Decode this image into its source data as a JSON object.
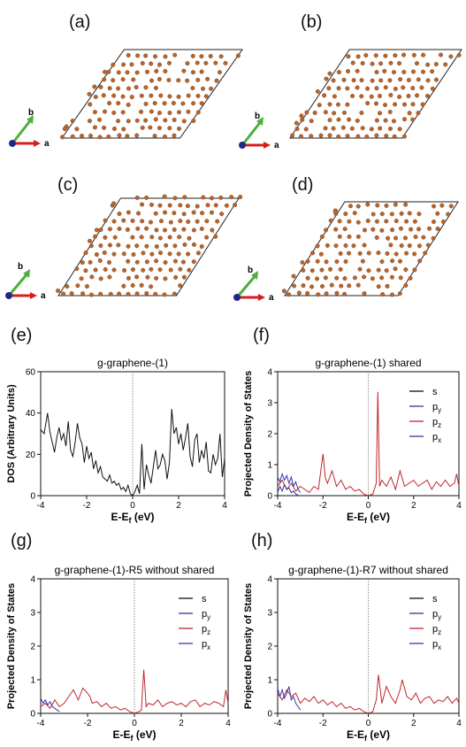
{
  "panels": {
    "a": "(a)",
    "b": "(b)",
    "c": "(c)",
    "d": "(d)",
    "e": "(e)",
    "f": "(f)",
    "g": "(g)",
    "h": "(h)"
  },
  "lattice_axes": {
    "a": "a",
    "b": "b"
  },
  "colors": {
    "atom": "#b5652e",
    "bond": "#c9c9c9",
    "cell": "#222222",
    "axis_a": "#d2201f",
    "axis_b": "#4caf3a",
    "axis_c": "#1d2a8a",
    "s": "#111111",
    "py": "#333399",
    "pz": "#c0262c",
    "px": "#3338a8"
  },
  "chart_data": [
    {
      "id": "e",
      "type": "line",
      "title": "g-graphene-(1)",
      "xlabel": "E-E",
      "xlabel_sub": "f",
      "xlabel_unit": " (eV)",
      "ylabel": "DOS (Arbitrary Units)",
      "xlim": [
        -4,
        4
      ],
      "ylim": [
        0,
        60
      ],
      "xticks": [
        -4,
        -2,
        0,
        2,
        4
      ],
      "yticks": [
        0,
        20,
        40,
        60
      ],
      "series": [
        {
          "key": "total",
          "color": "#111111",
          "x": [
            -4,
            -3.85,
            -3.7,
            -3.6,
            -3.5,
            -3.4,
            -3.3,
            -3.2,
            -3.1,
            -3.0,
            -2.9,
            -2.8,
            -2.7,
            -2.6,
            -2.5,
            -2.4,
            -2.3,
            -2.2,
            -2.1,
            -2.0,
            -1.9,
            -1.8,
            -1.7,
            -1.6,
            -1.5,
            -1.4,
            -1.3,
            -1.2,
            -1.1,
            -1.0,
            -0.9,
            -0.8,
            -0.7,
            -0.6,
            -0.5,
            -0.4,
            -0.3,
            -0.2,
            -0.1,
            0.0,
            0.1,
            0.2,
            0.3,
            0.4,
            0.5,
            0.6,
            0.7,
            0.8,
            0.9,
            1.0,
            1.1,
            1.2,
            1.3,
            1.4,
            1.5,
            1.6,
            1.7,
            1.8,
            1.9,
            2.0,
            2.1,
            2.2,
            2.3,
            2.4,
            2.5,
            2.6,
            2.7,
            2.8,
            2.9,
            3.0,
            3.1,
            3.2,
            3.3,
            3.4,
            3.5,
            3.6,
            3.7,
            3.8,
            3.9,
            4.0
          ],
          "y": [
            32,
            30,
            40,
            31,
            26,
            21,
            28,
            33,
            27,
            30,
            24,
            36,
            22,
            19,
            26,
            35,
            28,
            25,
            16,
            24,
            18,
            21,
            13,
            17,
            11,
            14,
            9,
            8,
            7,
            10,
            6,
            7,
            5,
            6,
            3,
            4,
            2,
            5,
            1,
            0,
            2,
            5,
            1,
            25,
            3,
            15,
            10,
            6,
            14,
            22,
            13,
            15,
            20,
            17,
            8,
            16,
            42,
            30,
            33,
            25,
            30,
            22,
            28,
            35,
            19,
            14,
            27,
            30,
            16,
            22,
            18,
            26,
            12,
            11,
            20,
            15,
            18,
            30,
            9,
            18
          ]
        }
      ]
    },
    {
      "id": "f",
      "type": "line",
      "title": "g-graphene-(1) shared",
      "xlabel": "E-E",
      "xlabel_sub": "f",
      "xlabel_unit": " (eV)",
      "ylabel": "Projected Density of States",
      "xlim": [
        -4,
        4
      ],
      "ylim": [
        0,
        4
      ],
      "xticks": [
        -4,
        -2,
        0,
        2,
        4
      ],
      "yticks": [
        0,
        1,
        2,
        3,
        4
      ],
      "legend": {
        "placement": "right",
        "entries": [
          {
            "key": "s",
            "base": "s",
            "sub": ""
          },
          {
            "key": "py",
            "base": "p",
            "sub": "y"
          },
          {
            "key": "pz",
            "base": "p",
            "sub": "z"
          },
          {
            "key": "px",
            "base": "p",
            "sub": "x"
          }
        ]
      },
      "series": [
        {
          "key": "pz",
          "color": "#c0262c",
          "x": [
            -4,
            -3.8,
            -3.6,
            -3.4,
            -3.2,
            -3.0,
            -2.8,
            -2.6,
            -2.4,
            -2.2,
            -2.0,
            -1.9,
            -1.8,
            -1.6,
            -1.4,
            -1.2,
            -1.0,
            -0.8,
            -0.6,
            -0.4,
            -0.2,
            0.0,
            0.2,
            0.35,
            0.42,
            0.5,
            0.6,
            0.8,
            1.0,
            1.2,
            1.4,
            1.6,
            1.8,
            2.0,
            2.2,
            2.4,
            2.6,
            2.8,
            3.0,
            3.2,
            3.4,
            3.6,
            3.8,
            3.9,
            4.0
          ],
          "y": [
            0.3,
            0.5,
            0.2,
            0.4,
            0.15,
            0.3,
            0.2,
            0.1,
            0.3,
            0.2,
            1.35,
            0.6,
            0.4,
            0.8,
            0.3,
            0.5,
            0.2,
            0.3,
            0.15,
            0.2,
            0.05,
            0.0,
            0.05,
            0.4,
            3.35,
            0.3,
            0.5,
            0.3,
            0.6,
            0.2,
            0.8,
            0.3,
            0.4,
            0.5,
            0.3,
            0.4,
            0.5,
            0.2,
            0.45,
            0.3,
            0.5,
            0.3,
            0.4,
            0.7,
            0.3
          ]
        },
        {
          "key": "px",
          "color": "#3338a8",
          "x": [
            -4,
            -3.9,
            -3.8,
            -3.7,
            -3.6,
            -3.5,
            -3.4,
            -3.3,
            -3.2,
            -3.1,
            -3.0
          ],
          "y": [
            0.6,
            0.45,
            0.7,
            0.5,
            0.65,
            0.4,
            0.6,
            0.3,
            0.45,
            0.2,
            0.1
          ]
        },
        {
          "key": "py",
          "color": "#333399",
          "x": [
            -4,
            -3.9,
            -3.8,
            -3.7,
            -3.6,
            -3.5,
            -3.4,
            -3.3,
            -3.2,
            -3.1
          ],
          "y": [
            0.1,
            0.3,
            0.15,
            0.35,
            0.2,
            0.25,
            0.1,
            0.15,
            0.05,
            0.02
          ]
        }
      ]
    },
    {
      "id": "g",
      "type": "line",
      "title": "g-graphene-(1)-R5 without shared",
      "xlabel": "E-E",
      "xlabel_sub": "f",
      "xlabel_unit": " (eV)",
      "ylabel": "Projected Density of States",
      "xlim": [
        -4,
        4
      ],
      "ylim": [
        0,
        4
      ],
      "xticks": [
        -4,
        -2,
        0,
        2,
        4
      ],
      "yticks": [
        0,
        1,
        2,
        3,
        4
      ],
      "legend": {
        "placement": "right",
        "entries": [
          {
            "key": "s",
            "base": "s",
            "sub": ""
          },
          {
            "key": "py",
            "base": "p",
            "sub": "y"
          },
          {
            "key": "pz",
            "base": "p",
            "sub": "z"
          },
          {
            "key": "px",
            "base": "p",
            "sub": "x"
          }
        ]
      },
      "series": [
        {
          "key": "pz",
          "color": "#c0262c",
          "x": [
            -4,
            -3.8,
            -3.6,
            -3.4,
            -3.2,
            -3.0,
            -2.8,
            -2.6,
            -2.4,
            -2.2,
            -2.0,
            -1.9,
            -1.8,
            -1.6,
            -1.4,
            -1.2,
            -1.0,
            -0.8,
            -0.6,
            -0.4,
            -0.2,
            0.0,
            0.2,
            0.3,
            0.4,
            0.5,
            0.6,
            0.8,
            1.0,
            1.2,
            1.4,
            1.6,
            1.8,
            2.0,
            2.2,
            2.4,
            2.6,
            2.8,
            3.0,
            3.2,
            3.4,
            3.6,
            3.8,
            3.9,
            4.0
          ],
          "y": [
            0.2,
            0.3,
            0.15,
            0.4,
            0.2,
            0.3,
            0.5,
            0.7,
            0.4,
            0.75,
            0.6,
            0.5,
            0.3,
            0.35,
            0.2,
            0.3,
            0.15,
            0.2,
            0.1,
            0.15,
            0.05,
            0.0,
            0.05,
            0.1,
            1.3,
            0.2,
            0.3,
            0.25,
            0.4,
            0.2,
            0.3,
            0.35,
            0.25,
            0.3,
            0.2,
            0.35,
            0.4,
            0.2,
            0.3,
            0.25,
            0.35,
            0.3,
            0.2,
            0.7,
            0.3
          ]
        },
        {
          "key": "px",
          "color": "#3338a8",
          "x": [
            -4,
            -3.9,
            -3.8,
            -3.7,
            -3.6,
            -3.5,
            -3.4,
            -3.3,
            -3.2
          ],
          "y": [
            0.45,
            0.3,
            0.4,
            0.25,
            0.35,
            0.2,
            0.15,
            0.1,
            0.05
          ]
        }
      ]
    },
    {
      "id": "h",
      "type": "line",
      "title": "g-graphene-(1)-R7 without shared",
      "xlabel": "E-E",
      "xlabel_sub": "f",
      "xlabel_unit": " (eV)",
      "ylabel": "Projected Density of States",
      "xlim": [
        -4,
        4
      ],
      "ylim": [
        0,
        4
      ],
      "xticks": [
        -4,
        -2,
        0,
        2,
        4
      ],
      "yticks": [
        0,
        1,
        2,
        3,
        4
      ],
      "legend": {
        "placement": "right",
        "entries": [
          {
            "key": "s",
            "base": "s",
            "sub": ""
          },
          {
            "key": "py",
            "base": "p",
            "sub": "y"
          },
          {
            "key": "pz",
            "base": "p",
            "sub": "z"
          },
          {
            "key": "px",
            "base": "p",
            "sub": "x"
          }
        ]
      },
      "series": [
        {
          "key": "pz",
          "color": "#c0262c",
          "x": [
            -4,
            -3.8,
            -3.6,
            -3.4,
            -3.2,
            -3.0,
            -2.8,
            -2.6,
            -2.4,
            -2.2,
            -2.0,
            -1.8,
            -1.6,
            -1.4,
            -1.2,
            -1.0,
            -0.8,
            -0.6,
            -0.4,
            -0.2,
            0.0,
            0.2,
            0.35,
            0.45,
            0.6,
            0.8,
            1.0,
            1.2,
            1.4,
            1.5,
            1.7,
            1.9,
            2.1,
            2.3,
            2.5,
            2.7,
            2.9,
            3.1,
            3.3,
            3.5,
            3.7,
            3.9,
            4.0
          ],
          "y": [
            0.6,
            0.4,
            0.7,
            0.5,
            0.6,
            0.3,
            0.45,
            0.35,
            0.5,
            0.3,
            0.4,
            0.25,
            0.35,
            0.2,
            0.3,
            0.15,
            0.2,
            0.1,
            0.15,
            0.05,
            0.0,
            0.05,
            0.4,
            1.15,
            0.3,
            0.8,
            0.5,
            0.3,
            0.7,
            1.0,
            0.5,
            0.4,
            0.6,
            0.3,
            0.45,
            0.5,
            0.3,
            0.4,
            0.35,
            0.5,
            0.3,
            0.45,
            0.3
          ]
        },
        {
          "key": "px",
          "color": "#3338a8",
          "x": [
            -4,
            -3.9,
            -3.8,
            -3.7,
            -3.6,
            -3.5,
            -3.4,
            -3.3,
            -3.2,
            -3.1,
            -3.0
          ],
          "y": [
            0.75,
            0.5,
            0.7,
            0.45,
            0.6,
            0.8,
            0.4,
            0.5,
            0.3,
            0.2,
            0.1
          ]
        }
      ]
    }
  ]
}
